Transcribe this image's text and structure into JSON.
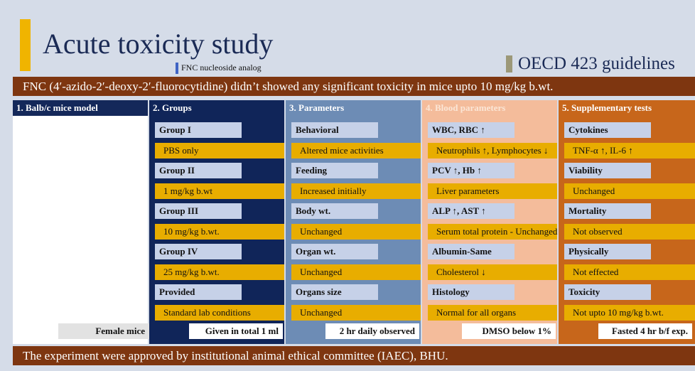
{
  "header": {
    "title": "Acute toxicity study",
    "subtitle": "FNC nucleoside analog",
    "guideline": "OECD 423 guidelines"
  },
  "summary": "FNC (4′-azido-2′-deoxy-2′-fluorocytidine) didn’t showed any significant toxicity in mice upto 10 mg/kg b.wt.",
  "columns": [
    {
      "header": "1. Balb/c mice model",
      "items": [],
      "footer": "Female mice"
    },
    {
      "header": "2. Groups",
      "items": [
        {
          "label": "Group I",
          "detail": "PBS only"
        },
        {
          "label": "Group II",
          "detail": "1 mg/kg b.wt"
        },
        {
          "label": "Group III",
          "detail": "10 mg/kg b.wt."
        },
        {
          "label": "Group IV",
          "detail": "25 mg/kg b.wt."
        },
        {
          "label": "Provided",
          "detail": "Standard lab conditions"
        }
      ],
      "footer": "Given in total 1 ml"
    },
    {
      "header": "3. Parameters",
      "items": [
        {
          "label": "Behavioral",
          "detail": "Altered mice activities"
        },
        {
          "label": "Feeding",
          "detail": "Increased initially"
        },
        {
          "label": "Body wt.",
          "detail": "Unchanged"
        },
        {
          "label": "Organ wt.",
          "detail": "Unchanged"
        },
        {
          "label": "Organs size",
          "detail": "Unchanged"
        }
      ],
      "footer": "2 hr daily observed"
    },
    {
      "header": "4. Blood parameters",
      "items": [
        {
          "label": "WBC, RBC ↑",
          "detail": "Neutrophils ↑, Lymphocytes ↓"
        },
        {
          "label": "PCV ↑, Hb ↑",
          "detail": "Liver parameters"
        },
        {
          "label": "ALP ↑, AST ↑",
          "detail": "Serum total protein - Unchanged"
        },
        {
          "label": "Albumin-Same",
          "detail": "Cholesterol ↓"
        },
        {
          "label": "Histology",
          "detail": "Normal for all organs"
        }
      ],
      "footer": "DMSO below 1%"
    },
    {
      "header": "5. Supplementary tests",
      "items": [
        {
          "label": "Cytokines",
          "detail": "TNF-α ↑, IL-6 ↑"
        },
        {
          "label": "Viability",
          "detail": "Unchanged"
        },
        {
          "label": "Mortality",
          "detail": "Not observed"
        },
        {
          "label": "Physically",
          "detail": "Not effected"
        },
        {
          "label": "Toxicity",
          "detail": "Not upto 10 mg/kg b.wt."
        }
      ],
      "footer": "Fasted 4 hr b/f exp."
    }
  ],
  "approval": "The experiment were approved by institutional animal ethical committee (IAEC), BHU."
}
